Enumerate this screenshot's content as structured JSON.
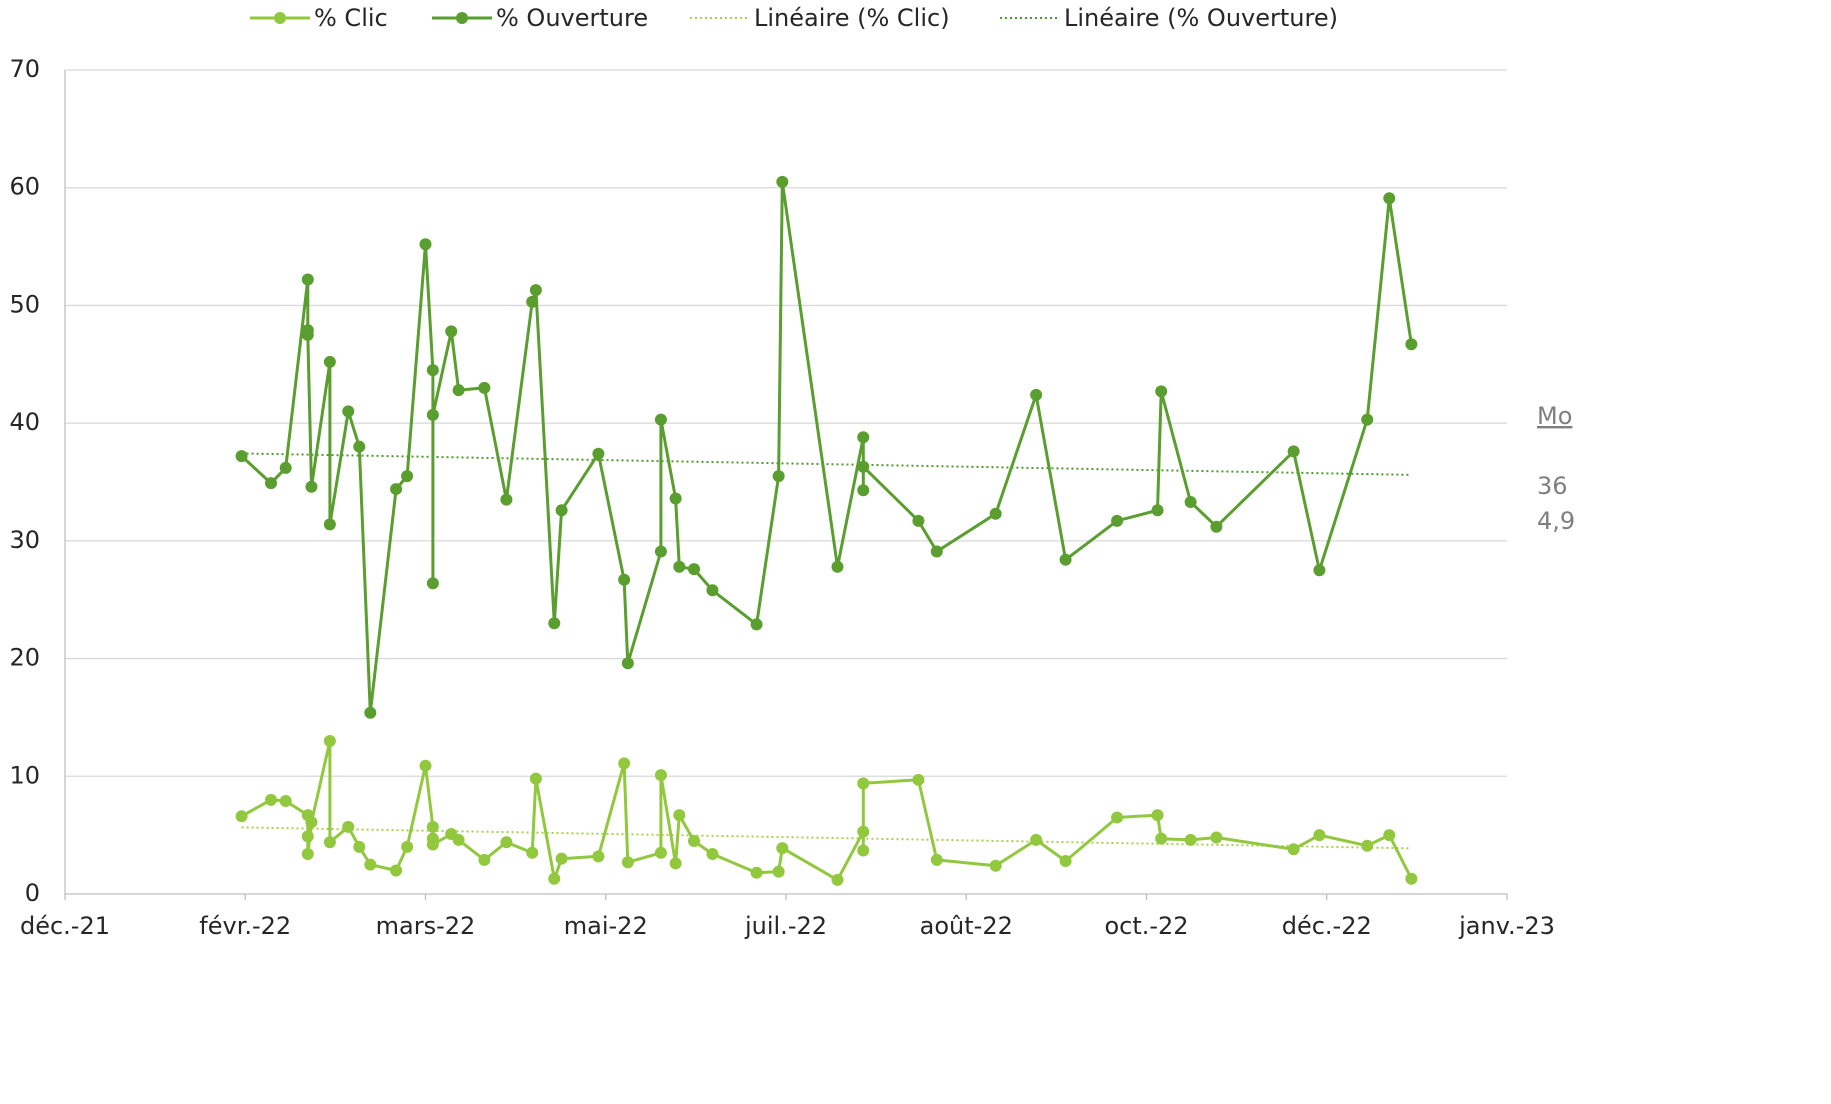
{
  "chart_data": {
    "type": "line",
    "x": [
      "2022-02-17",
      "2022-02-25",
      "2022-03-01",
      "2022-03-07",
      "2022-03-07",
      "2022-03-07",
      "2022-03-08",
      "2022-03-13",
      "2022-03-13",
      "2022-03-18",
      "2022-03-21",
      "2022-03-24",
      "2022-03-31",
      "2022-04-03",
      "2022-04-08",
      "2022-04-10",
      "2022-04-10",
      "2022-04-10",
      "2022-04-15",
      "2022-04-17",
      "2022-04-24",
      "2022-04-30",
      "2022-05-07",
      "2022-05-08",
      "2022-05-13",
      "2022-05-15",
      "2022-05-25",
      "2022-06-01",
      "2022-06-02",
      "2022-06-11",
      "2022-06-11",
      "2022-06-15",
      "2022-06-16",
      "2022-06-20",
      "2022-06-25",
      "2022-07-07",
      "2022-07-13",
      "2022-07-14",
      "2022-07-29",
      "2022-08-05",
      "2022-08-05",
      "2022-08-05",
      "2022-08-20",
      "2022-08-25",
      "2022-09-10",
      "2022-09-21",
      "2022-09-29",
      "2022-10-13",
      "2022-10-24",
      "2022-10-25",
      "2022-11-02",
      "2022-11-09",
      "2022-11-30",
      "2022-12-07",
      "2022-12-20",
      "2022-12-26",
      "2023-01-01"
    ],
    "series": [
      {
        "name": "% Clic",
        "color": "#92c83e",
        "values": [
          6.6,
          8.0,
          7.9,
          6.7,
          4.9,
          3.4,
          6.1,
          13.0,
          4.4,
          5.7,
          4.0,
          2.5,
          2.0,
          4.0,
          10.9,
          5.7,
          4.7,
          4.2,
          5.1,
          4.6,
          2.9,
          4.4,
          3.5,
          9.8,
          1.3,
          3.0,
          3.2,
          11.1,
          2.7,
          3.5,
          10.1,
          2.6,
          6.7,
          4.5,
          3.4,
          1.8,
          1.9,
          3.9,
          1.2,
          5.3,
          3.7,
          9.4,
          9.7,
          2.9,
          2.4,
          4.6,
          2.8,
          6.5,
          6.7,
          4.7,
          4.6,
          4.8,
          3.8,
          5.0,
          4.1,
          5.0,
          1.3
        ]
      },
      {
        "name": "% Ouverture",
        "color": "#5a9e2f",
        "values": [
          37.2,
          34.9,
          36.2,
          52.2,
          47.9,
          47.5,
          34.6,
          45.2,
          31.4,
          41.0,
          38.0,
          15.4,
          34.4,
          35.5,
          55.2,
          44.5,
          26.4,
          40.7,
          47.8,
          42.8,
          43.0,
          33.5,
          50.3,
          51.3,
          23.0,
          32.6,
          37.4,
          26.7,
          19.6,
          29.1,
          40.3,
          33.6,
          27.8,
          27.6,
          25.8,
          22.9,
          35.5,
          60.5,
          27.8,
          38.8,
          34.3,
          36.3,
          31.7,
          29.1,
          32.3,
          42.4,
          28.4,
          31.7,
          32.6,
          42.7,
          33.3,
          31.2,
          37.6,
          27.5,
          40.3,
          59.1,
          46.7
        ]
      }
    ],
    "trendlines": [
      {
        "name": "Linéaire (% Clic)",
        "series": 0,
        "color": "#a6d14a"
      },
      {
        "name": "Linéaire (% Ouverture)",
        "series": 1,
        "color": "#4f9a2a"
      }
    ],
    "xlim": [
      "2021-12-31",
      "2023-01-27"
    ],
    "xticks": [
      {
        "value": "2021-12-31",
        "label": "déc.-21"
      },
      {
        "value": "2022-02-18",
        "label": "févr.-22"
      },
      {
        "value": "2022-04-08",
        "label": "mars-22"
      },
      {
        "value": "2022-05-27",
        "label": "mai-22"
      },
      {
        "value": "2022-07-15",
        "label": "juil.-22"
      },
      {
        "value": "2022-09-02",
        "label": "août-22"
      },
      {
        "value": "2022-10-21",
        "label": "oct.-22"
      },
      {
        "value": "2022-12-09",
        "label": "déc.-22"
      },
      {
        "value": "2023-01-27",
        "label": "janv.-23"
      }
    ],
    "ylim": [
      0,
      70
    ],
    "yticks": [
      0,
      10,
      20,
      30,
      40,
      50,
      60,
      70
    ],
    "grid": true,
    "legend": "top",
    "annotations": [
      "Mo",
      "36",
      "4,9"
    ]
  }
}
